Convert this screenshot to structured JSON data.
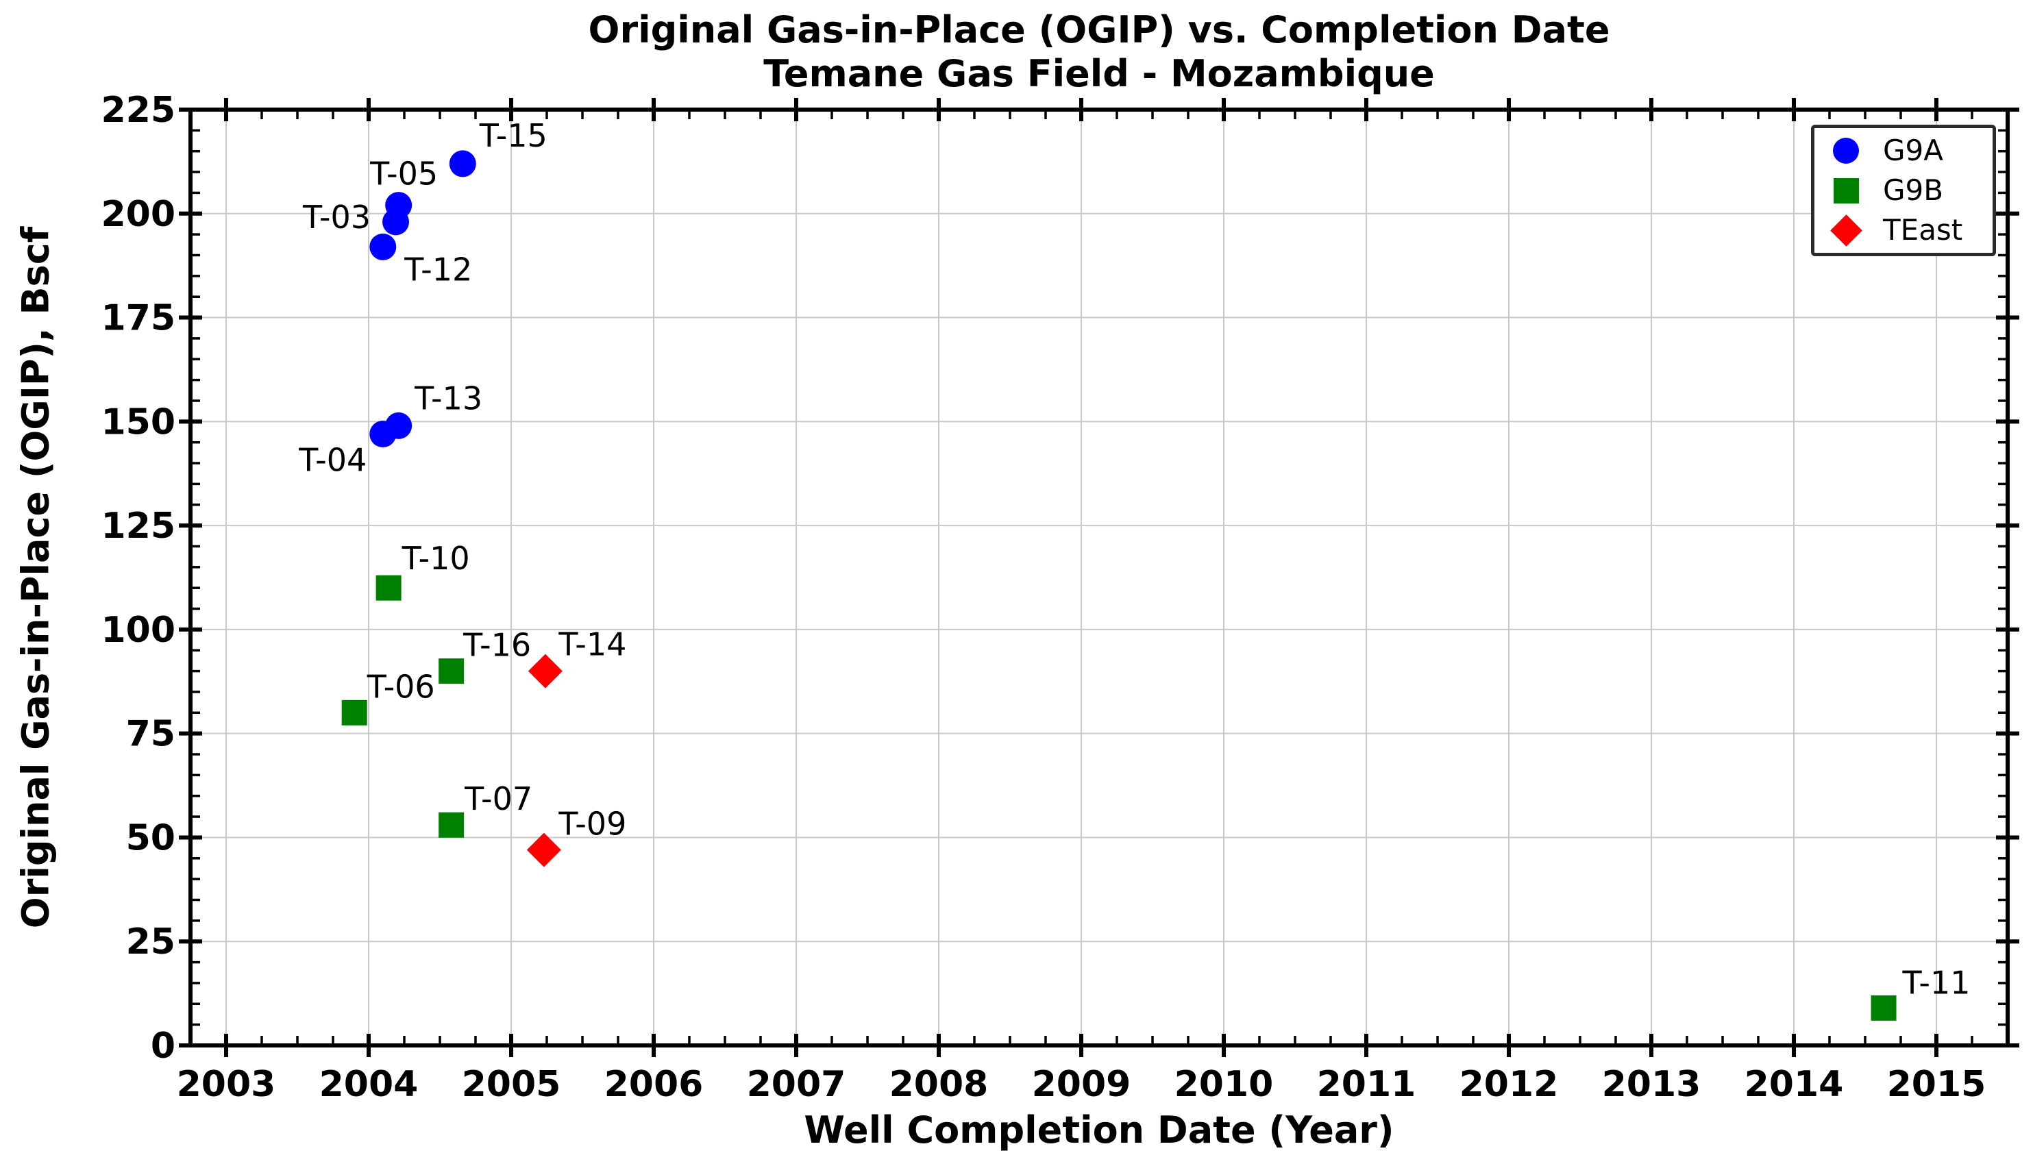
{
  "colors": {
    "background": "#ffffff",
    "axis": "#000000",
    "grid": "#c9c9c9",
    "legend_border": "#2b2b2b",
    "text": "#000000",
    "g9a": "#0000ff",
    "g9b": "#008000",
    "teast": "#ff0000"
  },
  "chart_data": {
    "type": "scatter",
    "title": "Original Gas-in-Place (OGIP) vs. Completion Date",
    "subtitle": "Temane Gas Field - Mozambique",
    "xlabel": "Well Completion Date (Year)",
    "ylabel": "Original Gas-in-Place (OGIP), Bscf",
    "xlim": [
      2002.75,
      2015.5
    ],
    "ylim": [
      0,
      225
    ],
    "x_ticks": [
      2003,
      2004,
      2005,
      2006,
      2007,
      2008,
      2009,
      2010,
      2011,
      2012,
      2013,
      2014,
      2015
    ],
    "y_ticks": [
      0,
      25,
      50,
      75,
      100,
      125,
      150,
      175,
      200,
      225
    ],
    "x_minor_step": 0.25,
    "y_minor_step": 5,
    "grid": true,
    "legend_position": "upper right",
    "legend_entries": [
      {
        "label": "G9A",
        "marker": "circle",
        "color": "#0000ff"
      },
      {
        "label": "G9B",
        "marker": "square",
        "color": "#008000"
      },
      {
        "label": "TEast",
        "marker": "diamond",
        "color": "#ff0000"
      }
    ],
    "series": [
      {
        "name": "G9A",
        "marker": "circle",
        "color": "#0000ff",
        "points": [
          {
            "well": "T-15",
            "x": 2004.66,
            "y": 212,
            "label_dx": 74,
            "label_dy": -41
          },
          {
            "well": "T-05",
            "x": 2004.21,
            "y": 202,
            "label_dx": 8,
            "label_dy": -46
          },
          {
            "well": "T-03",
            "x": 2004.19,
            "y": 198,
            "label_dx": -86,
            "label_dy": -7
          },
          {
            "well": "T-12",
            "x": 2004.1,
            "y": 192,
            "label_dx": 81,
            "label_dy": 33
          },
          {
            "well": "T-13",
            "x": 2004.21,
            "y": 149,
            "label_dx": 73,
            "label_dy": -40
          },
          {
            "well": "T-04",
            "x": 2004.1,
            "y": 147,
            "label_dx": -73,
            "label_dy": 38
          }
        ]
      },
      {
        "name": "G9B",
        "marker": "square",
        "color": "#008000",
        "points": [
          {
            "well": "T-10",
            "x": 2004.14,
            "y": 110,
            "label_dx": 69,
            "label_dy": -43
          },
          {
            "well": "T-16",
            "x": 2004.58,
            "y": 90,
            "label_dx": 67,
            "label_dy": -38
          },
          {
            "well": "T-06",
            "x": 2003.9,
            "y": 80,
            "label_dx": 68,
            "label_dy": -38
          },
          {
            "well": "T-07",
            "x": 2004.58,
            "y": 53,
            "label_dx": 69,
            "label_dy": -38
          },
          {
            "well": "T-11",
            "x": 2014.63,
            "y": 9,
            "label_dx": 77,
            "label_dy": -37
          }
        ]
      },
      {
        "name": "TEast",
        "marker": "diamond",
        "color": "#ff0000",
        "points": [
          {
            "well": "T-14",
            "x": 2005.24,
            "y": 90,
            "label_dx": 69,
            "label_dy": -39
          },
          {
            "well": "T-09",
            "x": 2005.23,
            "y": 47,
            "label_dx": 71,
            "label_dy": -38
          }
        ]
      }
    ]
  }
}
